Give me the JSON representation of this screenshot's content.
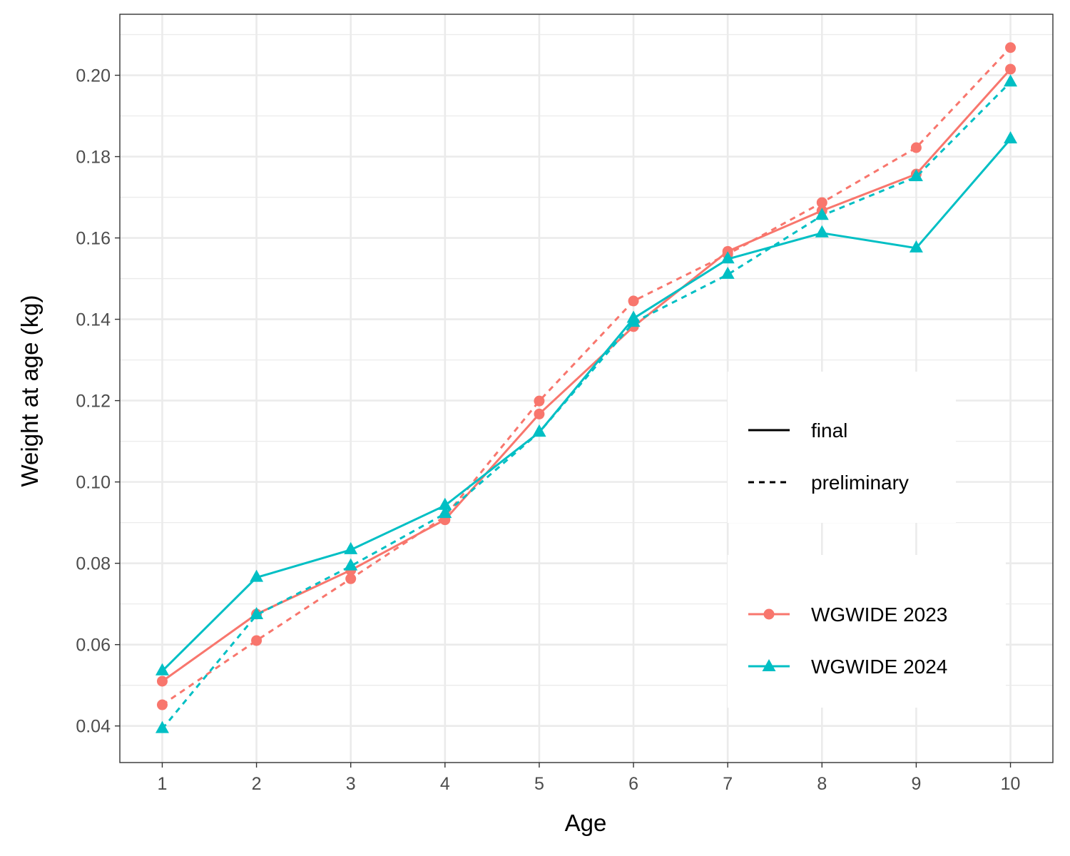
{
  "chart_data": {
    "type": "line",
    "title": "",
    "xlabel": "Age",
    "ylabel": "Weight at age (kg)",
    "x": [
      1,
      2,
      3,
      4,
      5,
      6,
      7,
      8,
      9,
      10
    ],
    "xlim": [
      0.55,
      10.45
    ],
    "ylim": [
      0.031,
      0.215
    ],
    "x_ticks": [
      1,
      2,
      3,
      4,
      5,
      6,
      7,
      8,
      9,
      10
    ],
    "x_tick_labels": [
      "1",
      "2",
      "3",
      "4",
      "5",
      "6",
      "7",
      "8",
      "9",
      "10"
    ],
    "y_ticks": [
      0.04,
      0.06,
      0.08,
      0.1,
      0.12,
      0.14,
      0.16,
      0.18,
      0.2
    ],
    "y_tick_labels": [
      "0.04",
      "0.06",
      "0.08",
      "0.10",
      "0.12",
      "0.14",
      "0.16",
      "0.18",
      "0.20"
    ],
    "grid": true,
    "legend_position": "right",
    "series": [
      {
        "group": "WGWIDE 2023",
        "type": "final",
        "color": "#F8766D",
        "marker": "circle",
        "linestyle": "solid",
        "values": [
          0.051,
          0.0675,
          0.0783,
          0.0907,
          0.1167,
          0.1382,
          0.1567,
          0.1667,
          0.1757,
          0.2015
        ]
      },
      {
        "group": "WGWIDE 2023",
        "type": "preliminary",
        "color": "#F8766D",
        "marker": "circle",
        "linestyle": "dashed",
        "values": [
          0.0452,
          0.061,
          0.0762,
          0.0915,
          0.1199,
          0.1445,
          0.156,
          0.1687,
          0.1822,
          0.2068
        ]
      },
      {
        "group": "WGWIDE 2024",
        "type": "final",
        "color": "#00BFC4",
        "marker": "triangle",
        "linestyle": "solid",
        "values": [
          0.0535,
          0.0765,
          0.0833,
          0.0942,
          0.1122,
          0.1402,
          0.1548,
          0.1612,
          0.1575,
          0.1843
        ]
      },
      {
        "group": "WGWIDE 2024",
        "type": "preliminary",
        "color": "#00BFC4",
        "marker": "triangle",
        "linestyle": "dashed",
        "values": [
          0.0393,
          0.0673,
          0.0793,
          0.0922,
          0.1122,
          0.1392,
          0.151,
          0.1655,
          0.175,
          0.1983
        ]
      }
    ],
    "legend": {
      "linetype": [
        {
          "label": "final",
          "linestyle": "solid"
        },
        {
          "label": "preliminary",
          "linestyle": "dashed"
        }
      ],
      "group": [
        {
          "label": "WGWIDE 2023",
          "color": "#F8766D",
          "marker": "circle"
        },
        {
          "label": "WGWIDE 2024",
          "color": "#00BFC4",
          "marker": "triangle"
        }
      ]
    }
  }
}
